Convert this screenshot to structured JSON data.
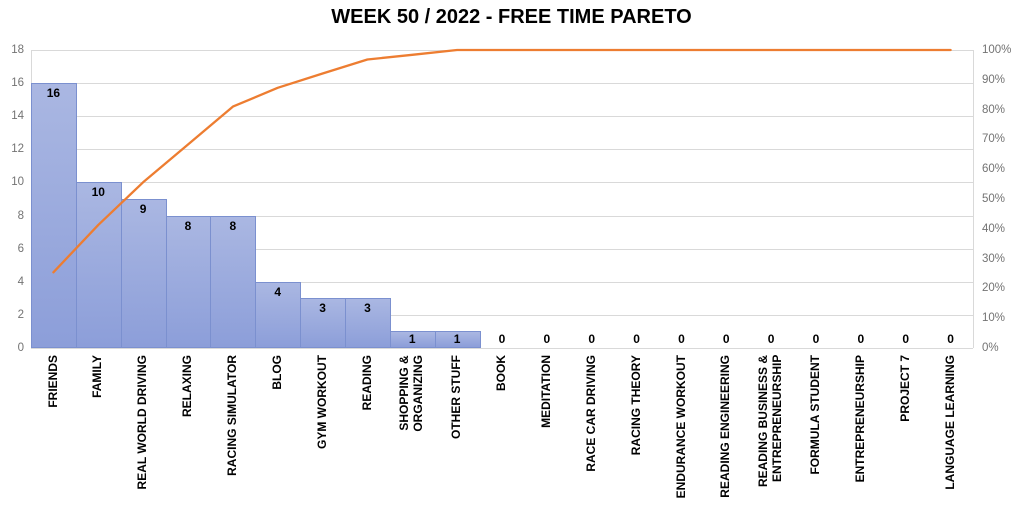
{
  "title": "WEEK 50 / 2022 - FREE TIME PARETO",
  "chart_data": {
    "type": "bar",
    "subtype": "pareto (bars + cumulative % line)",
    "title": "WEEK 50 / 2022 - FREE TIME PARETO",
    "categories": [
      "FRIENDS",
      "FAMILY",
      "REAL WORLD DRIVING",
      "RELAXING",
      "RACING SIMULATOR",
      "BLOG",
      "GYM WORKOUT",
      "READING",
      "SHOPPING &\nORGANIZING",
      "OTHER STUFF",
      "BOOK",
      "MEDITATION",
      "RACE CAR DRIVING",
      "RACING THEORY",
      "ENDURANCE WORKOUT",
      "READING ENGINEERING",
      "READING BUSINESS &\nENTREPRENEURSHIP",
      "FORMULA STUDENT",
      "ENTREPRENEURSHIP",
      "PROJECT 7",
      "LANGUAGE LEARNING"
    ],
    "series": [
      {
        "name": "hours",
        "type": "bar",
        "axis": "left",
        "values": [
          16,
          10,
          9,
          8,
          8,
          4,
          3,
          3,
          1,
          1,
          0,
          0,
          0,
          0,
          0,
          0,
          0,
          0,
          0,
          0,
          0
        ],
        "data_labels": [
          "16",
          "10",
          "9",
          "8",
          "8",
          "4",
          "3",
          "3",
          "1",
          "1",
          "0",
          "0",
          "0",
          "0",
          "0",
          "0",
          "0",
          "0",
          "0",
          "0",
          "0"
        ]
      },
      {
        "name": "cumulative-percent",
        "type": "line",
        "axis": "right",
        "values": [
          25.4,
          41.3,
          55.6,
          68.3,
          81.0,
          87.3,
          92.1,
          96.8,
          98.4,
          100,
          100,
          100,
          100,
          100,
          100,
          100,
          100,
          100,
          100,
          100,
          100
        ]
      }
    ],
    "left_axis": {
      "min": 0,
      "max": 18,
      "step": 2,
      "ticks": [
        "0",
        "2",
        "4",
        "6",
        "8",
        "10",
        "12",
        "14",
        "16",
        "18"
      ]
    },
    "right_axis": {
      "min": 0,
      "max": 100,
      "step": 10,
      "ticks": [
        "0%",
        "10%",
        "20%",
        "30%",
        "40%",
        "50%",
        "60%",
        "70%",
        "80%",
        "90%",
        "100%"
      ]
    },
    "grid": true,
    "legend": "none",
    "colors": {
      "bar_top": "#aab7e2",
      "bar_bottom": "#8c9ed9",
      "bar_border": "#7b90cf",
      "line": "#ED7D31",
      "gridline": "#d9d9d9",
      "axis_text": "#737373",
      "label_text": "#000000",
      "title_text": "#000000"
    }
  }
}
